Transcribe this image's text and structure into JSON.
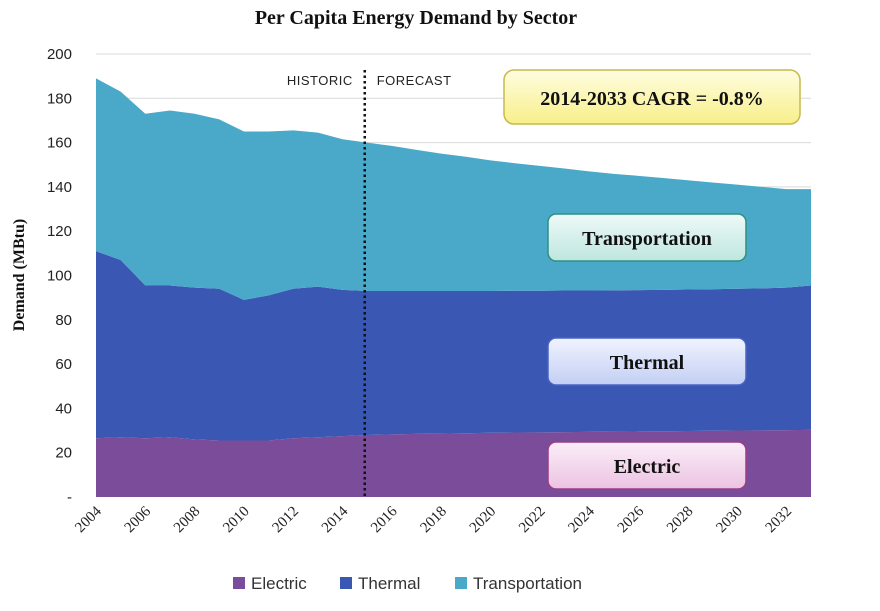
{
  "chart_data": {
    "type": "area",
    "title": "Per Capita Energy Demand by Sector",
    "xlabel": "",
    "ylabel": "Demand (MBtu)",
    "ylim": [
      0,
      200
    ],
    "xlim": [
      2004,
      2033
    ],
    "y_ticks": [
      "-",
      "20",
      "40",
      "60",
      "80",
      "100",
      "120",
      "140",
      "160",
      "180",
      "200"
    ],
    "x_ticks": [
      "2004",
      "2006",
      "2008",
      "2010",
      "2012",
      "2014",
      "2016",
      "2018",
      "2020",
      "2022",
      "2024",
      "2026",
      "2028",
      "2030",
      "2032"
    ],
    "x": [
      2004,
      2005,
      2006,
      2007,
      2008,
      2009,
      2010,
      2011,
      2012,
      2013,
      2014,
      2015,
      2016,
      2017,
      2018,
      2019,
      2020,
      2021,
      2022,
      2023,
      2024,
      2025,
      2026,
      2027,
      2028,
      2029,
      2030,
      2031,
      2032,
      2033
    ],
    "stacked": true,
    "series": [
      {
        "name": "Electric",
        "color": "#7b4c9a",
        "values": [
          26.5,
          27,
          26.5,
          27,
          26,
          25.5,
          25.5,
          25.5,
          26.5,
          27,
          27.5,
          28,
          28.3,
          28.5,
          28.6,
          28.8,
          29,
          29.1,
          29.2,
          29.3,
          29.4,
          29.5,
          29.6,
          29.7,
          29.8,
          29.9,
          30,
          30.1,
          30.2,
          30.3
        ]
      },
      {
        "name": "Thermal",
        "color": "#3a57b4",
        "values": [
          84.5,
          80,
          69,
          68.5,
          68.5,
          68.5,
          63.5,
          65.5,
          67.5,
          68,
          66,
          65,
          64.7,
          64.5,
          64.4,
          64.2,
          64,
          64,
          63.9,
          63.9,
          63.8,
          63.8,
          63.8,
          63.8,
          63.9,
          63.9,
          64,
          64.1,
          64.3,
          65.2
        ]
      },
      {
        "name": "Transportation",
        "color": "#4aa8c9",
        "values": [
          78,
          76,
          77.5,
          79,
          78.5,
          76.5,
          76,
          74,
          71.5,
          69.5,
          68,
          67,
          65.5,
          63.7,
          62,
          60.6,
          59,
          57.6,
          56.4,
          55.1,
          53.8,
          52.6,
          51.6,
          50.5,
          49.3,
          48.2,
          47,
          45.8,
          44.5,
          43.5
        ]
      }
    ],
    "divider_x": 2014.9,
    "phase_labels": {
      "historic": "HISTORIC",
      "forecast": "FORECAST"
    },
    "annotation": "2014-2033 CAGR = -0.8%",
    "area_labels": {
      "transportation": "Transportation",
      "thermal": "Thermal",
      "electric": "Electric"
    },
    "legend": [
      "Electric",
      "Thermal",
      "Transportation"
    ],
    "legend_position": "bottom",
    "grid": true
  }
}
